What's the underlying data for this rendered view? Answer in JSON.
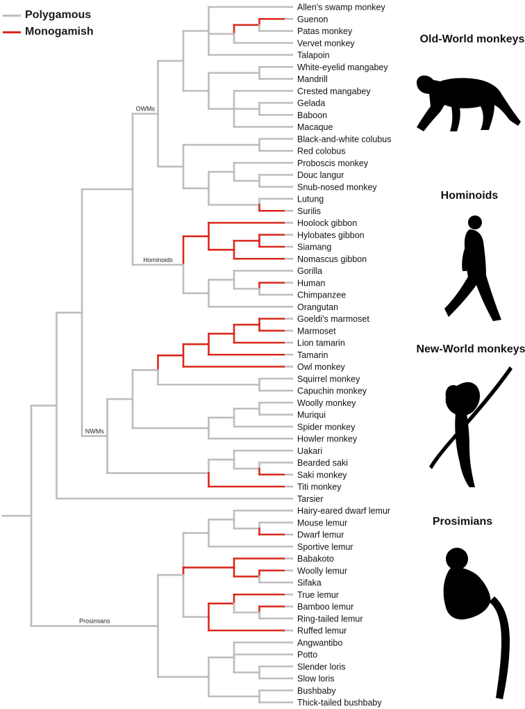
{
  "legend": {
    "polygamous_label": "Polygamous",
    "monogamish_label": "Monogamish",
    "polygamous_color": "#bdbdbd",
    "monogamish_color": "#d8281b"
  },
  "groups": {
    "owm_title": "Old-World monkeys",
    "hominoid_title": "Hominoids",
    "nwm_title": "New-World monkeys",
    "prosimian_title": "Prosimians"
  },
  "clade_labels": {
    "owms": "OWMs",
    "hominoids": "Hominoids",
    "nwms": "NWMs",
    "prosimians": "Prosimians"
  },
  "taxa": [
    "Allen's swamp monkey",
    "Guenon",
    "Patas monkey",
    "Vervet monkey",
    "Talapoin",
    "White-eyelid mangabey",
    "Mandrill",
    "Crested mangabey",
    "Gelada",
    "Baboon",
    "Macaque",
    "Black-and-white colubus",
    "Red colobus",
    "Proboscis monkey",
    "Douc langur",
    "Snub-nosed monkey",
    "Lutung",
    "Surilis",
    "Hoolock gibbon",
    "Hylobates gibbon",
    "Siamang",
    "Nomascus gibbon",
    "Gorilla",
    "Human",
    "Chimpanzee",
    "Orangutan",
    "Goeldi's marmoset",
    "Marmoset",
    "Lion tamarin",
    "Tamarin",
    "Owl monkey",
    "Squirrel monkey",
    "Capuchin monkey",
    "Woolly monkey",
    "Muriqui",
    "Spider monkey",
    "Howler monkey",
    "Uakari",
    "Bearded saki",
    "Saki monkey",
    "Titi monkey",
    "Tarsier",
    "Hairy-eared dwarf lemur",
    "Mouse lemur",
    "Dwarf lemur",
    "Sportive lemur",
    "Babakoto",
    "Woolly lemur",
    "Sifaka",
    "True lemur",
    "Bamboo lemur",
    "Ring-tailed lemur",
    "Ruffed lemur",
    "Angwantibo",
    "Potto",
    "Slender loris",
    "Slow loris",
    "Bushbaby",
    "Thick-tailed bushbaby"
  ],
  "tree": {
    "c": "p",
    "l": "root",
    "ch": [
      {
        "c": "p",
        "ch": [
          {
            "c": "p",
            "l": "anthro",
            "ch": [
              {
                "c": "p",
                "l": "catarrhini",
                "ch": [
                  {
                    "c": "p",
                    "lbl": "owms",
                    "ch": [
                      {
                        "c": "p",
                        "l": "cercopithecinae",
                        "ch": [
                          {
                            "c": "p",
                            "ch": [
                              {
                                "t": 0,
                                "c": "p"
                              },
                              {
                                "c": "p",
                                "ch": [
                                  {
                                    "c": "m",
                                    "ch": [
                                      {
                                        "t": 1,
                                        "c": "m"
                                      },
                                      {
                                        "t": 2,
                                        "c": "p"
                                      }
                                    ]
                                  },
                                  {
                                    "t": 3,
                                    "c": "p"
                                  }
                                ]
                              },
                              {
                                "t": 4,
                                "c": "p"
                              }
                            ]
                          },
                          {
                            "c": "p",
                            "ch": [
                              {
                                "c": "p",
                                "ch": [
                                  {
                                    "t": 5,
                                    "c": "p"
                                  },
                                  {
                                    "t": 6,
                                    "c": "p"
                                  }
                                ]
                              },
                              {
                                "c": "p",
                                "ch": [
                                  {
                                    "t": 7,
                                    "c": "p"
                                  },
                                  {
                                    "c": "p",
                                    "ch": [
                                      {
                                        "t": 8,
                                        "c": "p"
                                      },
                                      {
                                        "t": 9,
                                        "c": "p"
                                      }
                                    ]
                                  },
                                  {
                                    "t": 10,
                                    "c": "p"
                                  }
                                ]
                              }
                            ]
                          }
                        ]
                      },
                      {
                        "c": "p",
                        "ch": [
                          {
                            "c": "p",
                            "ch": [
                              {
                                "t": 11,
                                "c": "p"
                              },
                              {
                                "t": 12,
                                "c": "p"
                              }
                            ]
                          },
                          {
                            "c": "p",
                            "ch": [
                              {
                                "c": "p",
                                "ch": [
                                  {
                                    "t": 13,
                                    "c": "p"
                                  },
                                  {
                                    "c": "p",
                                    "ch": [
                                      {
                                        "t": 14,
                                        "c": "p"
                                      },
                                      {
                                        "t": 15,
                                        "c": "p"
                                      }
                                    ]
                                  }
                                ]
                              },
                              {
                                "c": "p",
                                "ch": [
                                  {
                                    "t": 16,
                                    "c": "p"
                                  },
                                  {
                                    "t": 17,
                                    "c": "m"
                                  }
                                ]
                              }
                            ]
                          }
                        ]
                      }
                    ]
                  },
                  {
                    "c": "p",
                    "lbl": "hominoids",
                    "ch": [
                      {
                        "c": "m",
                        "ch": [
                          {
                            "t": 18,
                            "c": "m"
                          },
                          {
                            "c": "m",
                            "ch": [
                              {
                                "c": "m",
                                "ch": [
                                  {
                                    "t": 19,
                                    "c": "m"
                                  },
                                  {
                                    "t": 20,
                                    "c": "m"
                                  }
                                ]
                              },
                              {
                                "t": 21,
                                "c": "m"
                              }
                            ]
                          }
                        ]
                      },
                      {
                        "c": "p",
                        "ch": [
                          {
                            "c": "p",
                            "ch": [
                              {
                                "t": 22,
                                "c": "p"
                              },
                              {
                                "c": "p",
                                "ch": [
                                  {
                                    "t": 23,
                                    "c": "m"
                                  },
                                  {
                                    "t": 24,
                                    "c": "p"
                                  }
                                ]
                              }
                            ]
                          },
                          {
                            "t": 25,
                            "c": "p"
                          }
                        ]
                      }
                    ]
                  }
                ]
              },
              {
                "c": "p",
                "lbl": "nwms",
                "ch": [
                  {
                    "c": "p",
                    "ch": [
                      {
                        "c": "p",
                        "ch": [
                          {
                            "c": "m",
                            "ch": [
                              {
                                "c": "m",
                                "ch": [
                                  {
                                    "c": "m",
                                    "ch": [
                                      {
                                        "c": "m",
                                        "ch": [
                                          {
                                            "t": 26,
                                            "c": "m"
                                          },
                                          {
                                            "t": 27,
                                            "c": "m"
                                          }
                                        ]
                                      },
                                      {
                                        "t": 28,
                                        "c": "m"
                                      }
                                    ]
                                  },
                                  {
                                    "t": 29,
                                    "c": "m"
                                  }
                                ]
                              },
                              {
                                "t": 30,
                                "c": "m"
                              }
                            ]
                          },
                          {
                            "c": "p",
                            "ch": [
                              {
                                "t": 31,
                                "c": "p"
                              },
                              {
                                "t": 32,
                                "c": "p"
                              }
                            ]
                          }
                        ]
                      },
                      {
                        "c": "p",
                        "ch": [
                          {
                            "c": "p",
                            "ch": [
                              {
                                "c": "p",
                                "ch": [
                                  {
                                    "t": 33,
                                    "c": "p"
                                  },
                                  {
                                    "t": 34,
                                    "c": "p"
                                  }
                                ]
                              },
                              {
                                "t": 35,
                                "c": "p"
                              }
                            ]
                          },
                          {
                            "t": 36,
                            "c": "p"
                          }
                        ]
                      }
                    ]
                  },
                  {
                    "c": "p",
                    "ch": [
                      {
                        "c": "p",
                        "ch": [
                          {
                            "t": 37,
                            "c": "p"
                          },
                          {
                            "c": "p",
                            "ch": [
                              {
                                "t": 38,
                                "c": "p"
                              },
                              {
                                "t": 39,
                                "c": "m"
                              }
                            ]
                          }
                        ]
                      },
                      {
                        "t": 40,
                        "c": "m"
                      }
                    ]
                  }
                ]
              }
            ]
          },
          {
            "t": 41,
            "c": "p"
          }
        ]
      },
      {
        "c": "p",
        "lbl": "prosimians",
        "ch": [
          {
            "c": "p",
            "ch": [
              {
                "c": "p",
                "ch": [
                  {
                    "c": "p",
                    "ch": [
                      {
                        "t": 42,
                        "c": "p"
                      },
                      {
                        "c": "p",
                        "ch": [
                          {
                            "t": 43,
                            "c": "p"
                          },
                          {
                            "t": 44,
                            "c": "m"
                          }
                        ]
                      }
                    ]
                  },
                  {
                    "t": 45,
                    "c": "p"
                  }
                ]
              },
              {
                "c": "m",
                "ch": [
                  {
                    "t": 46,
                    "c": "m"
                  },
                  {
                    "c": "m",
                    "ch": [
                      {
                        "t": 47,
                        "c": "m"
                      },
                      {
                        "t": 48,
                        "c": "p"
                      }
                    ]
                  }
                ]
              },
              {
                "c": "p",
                "ch": [
                  {
                    "c": "m",
                    "ch": [
                      {
                        "t": 49,
                        "c": "m"
                      },
                      {
                        "c": "p",
                        "ch": [
                          {
                            "t": 50,
                            "c": "m"
                          },
                          {
                            "t": 51,
                            "c": "p"
                          }
                        ]
                      }
                    ]
                  },
                  {
                    "t": 52,
                    "c": "m"
                  }
                ]
              }
            ]
          },
          {
            "c": "p",
            "ch": [
              {
                "c": "p",
                "ch": [
                  {
                    "t": 53,
                    "c": "p"
                  },
                  {
                    "t": 54,
                    "c": "p"
                  },
                  {
                    "c": "p",
                    "ch": [
                      {
                        "t": 55,
                        "c": "p"
                      },
                      {
                        "t": 56,
                        "c": "p"
                      }
                    ]
                  }
                ]
              },
              {
                "c": "p",
                "ch": [
                  {
                    "t": 57,
                    "c": "p"
                  },
                  {
                    "t": 58,
                    "c": "p"
                  }
                ]
              }
            ]
          }
        ]
      }
    ]
  },
  "icons": {
    "owm": "baboon-silhouette-icon",
    "hominoid": "human-silhouette-icon",
    "nwm": "tamarin-silhouette-icon",
    "prosimian": "lemur-silhouette-icon"
  }
}
